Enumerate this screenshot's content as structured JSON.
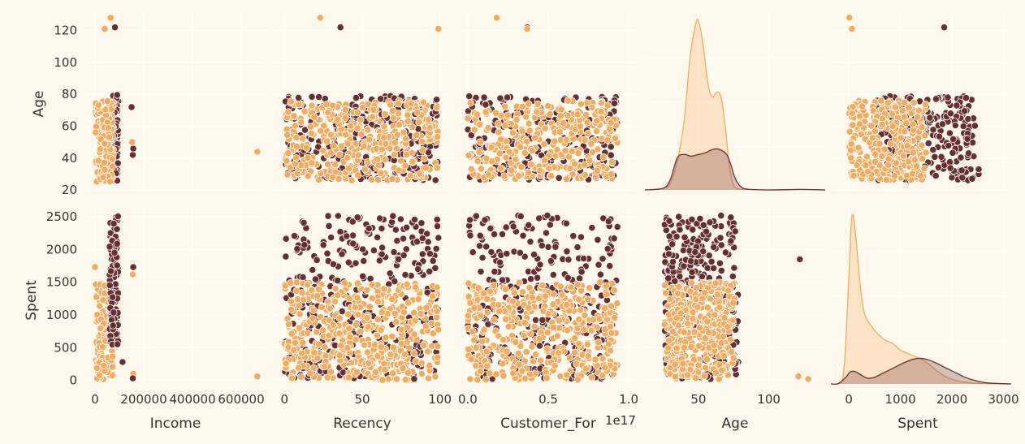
{
  "colors": {
    "background": "#FFF9ED",
    "grid": "#FFFFFF",
    "cluster_dark": "#682F2F",
    "cluster_light": "#F3AB60",
    "text": "#333333"
  },
  "variables": [
    "Age",
    "Spent"
  ],
  "x_variables": [
    "Income",
    "Recency",
    "Customer_For",
    "Age",
    "Spent"
  ],
  "chart_data": [
    {
      "type": "scatter",
      "row": "Age",
      "col": "Income",
      "xlabel": "",
      "ylabel": "Age",
      "xlim": [
        -40000,
        700000
      ],
      "ylim": [
        19,
        131
      ],
      "xticks": [
        0,
        200000,
        400000,
        600000
      ],
      "xtick_labels": [
        "",
        "",
        "",
        ""
      ],
      "yticks": [
        20,
        40,
        60,
        80,
        100,
        120
      ],
      "ytick_labels": [
        "20",
        "40",
        "60",
        "80",
        "100",
        "120"
      ],
      "series": [
        {
          "name": "",
          "color": "#682F2F",
          "x_range": [
            60000,
            95000
          ],
          "y_range": [
            25,
            80
          ],
          "n": 110,
          "outliers": [
            [
              82000,
              122
            ],
            [
              150000,
              72
            ],
            [
              155000,
              42
            ],
            [
              157000,
              46
            ]
          ]
        },
        {
          "name": "",
          "color": "#F3AB60",
          "x_range": [
            2000,
            75000
          ],
          "y_range": [
            25,
            76
          ],
          "n": 130,
          "outliers": [
            [
              64000,
              128
            ],
            [
              40000,
              121
            ],
            [
              152000,
              50
            ],
            [
              666000,
              44
            ]
          ]
        }
      ]
    },
    {
      "type": "scatter",
      "row": "Age",
      "col": "Recency",
      "xlabel": "",
      "ylabel": "",
      "xlim": [
        -8,
        108
      ],
      "ylim": [
        19,
        131
      ],
      "xticks": [
        0,
        50,
        100
      ],
      "xtick_labels": [
        "",
        "",
        ""
      ],
      "yticks": [
        20,
        40,
        60,
        80,
        100,
        120
      ],
      "ytick_labels": [
        "",
        "",
        "",
        "",
        "",
        ""
      ],
      "series": [
        {
          "name": "",
          "color": "#682F2F",
          "x_range": [
            0,
            99
          ],
          "y_range": [
            26,
            79
          ],
          "n": 300,
          "outliers": [
            [
              36,
              122
            ]
          ]
        },
        {
          "name": "",
          "color": "#F3AB60",
          "x_range": [
            0,
            99
          ],
          "y_range": [
            26,
            76
          ],
          "n": 340,
          "outliers": [
            [
              23,
              128
            ],
            [
              99,
              121
            ]
          ]
        }
      ]
    },
    {
      "type": "scatter",
      "row": "Age",
      "col": "Customer_For",
      "xlabel": "",
      "ylabel": "",
      "xlim": [
        -0.06,
        1.06
      ],
      "ylim": [
        19,
        131
      ],
      "xticks": [
        0.0,
        0.5,
        1.0
      ],
      "xtick_labels": [
        "",
        "",
        ""
      ],
      "yticks": [
        20,
        40,
        60,
        80,
        100,
        120
      ],
      "ytick_labels": [
        "",
        "",
        "",
        "",
        "",
        ""
      ],
      "series": [
        {
          "name": "",
          "color": "#682F2F",
          "x_range": [
            0.0,
            0.93
          ],
          "y_range": [
            26,
            79
          ],
          "n": 260,
          "outliers": [
            [
              0.37,
              122
            ]
          ]
        },
        {
          "name": "",
          "color": "#F3AB60",
          "x_range": [
            0.0,
            0.93
          ],
          "y_range": [
            26,
            76
          ],
          "n": 300,
          "outliers": [
            [
              0.18,
              128
            ],
            [
              0.37,
              121
            ]
          ]
        }
      ]
    },
    {
      "type": "kde",
      "row": "Age",
      "col": "Age",
      "xlabel": "",
      "ylabel": "",
      "xlim": [
        12,
        140
      ],
      "xticks": [
        50,
        100
      ],
      "xtick_labels": [
        "",
        ""
      ],
      "series": [
        {
          "name": "",
          "color": "#F3AB60",
          "points": [
            [
              12,
              0
            ],
            [
              25,
              0.01
            ],
            [
              30,
              0.04
            ],
            [
              35,
              0.17
            ],
            [
              40,
              0.42
            ],
            [
              44,
              0.78
            ],
            [
              48,
              0.98
            ],
            [
              50,
              1.0
            ],
            [
              53,
              0.88
            ],
            [
              57,
              0.62
            ],
            [
              60,
              0.55
            ],
            [
              63,
              0.58
            ],
            [
              66,
              0.55
            ],
            [
              69,
              0.38
            ],
            [
              72,
              0.14
            ],
            [
              75,
              0.03
            ],
            [
              80,
              0.005
            ],
            [
              100,
              0.0
            ],
            [
              125,
              0.003
            ],
            [
              130,
              0.002
            ],
            [
              140,
              0
            ]
          ]
        },
        {
          "name": "",
          "color": "#682F2F",
          "points": [
            [
              12,
              0
            ],
            [
              25,
              0.01
            ],
            [
              30,
              0.06
            ],
            [
              35,
              0.19
            ],
            [
              40,
              0.21
            ],
            [
              45,
              0.2
            ],
            [
              50,
              0.21
            ],
            [
              55,
              0.22
            ],
            [
              60,
              0.24
            ],
            [
              65,
              0.24
            ],
            [
              70,
              0.21
            ],
            [
              73,
              0.15
            ],
            [
              76,
              0.07
            ],
            [
              80,
              0.02
            ],
            [
              85,
              0.005
            ],
            [
              100,
              0.0
            ],
            [
              122,
              0.003
            ],
            [
              140,
              0
            ]
          ]
        }
      ]
    },
    {
      "type": "scatter",
      "row": "Age",
      "col": "Spent",
      "xlabel": "",
      "ylabel": "",
      "xlim": [
        -350,
        3150
      ],
      "ylim": [
        19,
        131
      ],
      "xticks": [
        0,
        1000,
        2000,
        3000
      ],
      "xtick_labels": [
        "",
        "",
        "",
        ""
      ],
      "yticks": [
        20,
        40,
        60,
        80,
        100,
        120
      ],
      "ytick_labels": [
        "",
        "",
        "",
        "",
        "",
        ""
      ],
      "series": [
        {
          "name": "",
          "color": "#682F2F",
          "x_range": [
            500,
            2450
          ],
          "y_range": [
            26,
            79
          ],
          "n": 260,
          "outliers": [
            [
              1850,
              122
            ],
            [
              2520,
              30
            ],
            [
              2520,
              33
            ],
            [
              2300,
              52
            ]
          ]
        },
        {
          "name": "",
          "color": "#F3AB60",
          "x_range": [
            5,
            1500
          ],
          "y_range": [
            26,
            76
          ],
          "n": 300,
          "outliers": [
            [
              10,
              128
            ],
            [
              60,
              121
            ]
          ]
        }
      ]
    },
    {
      "type": "scatter",
      "row": "Spent",
      "col": "Income",
      "xlabel": "Income",
      "ylabel": "Spent",
      "xlim": [
        -40000,
        700000
      ],
      "ylim": [
        -80,
        2650
      ],
      "xticks": [
        0,
        200000,
        400000,
        600000
      ],
      "xtick_labels": [
        "0",
        "200000",
        "400000",
        "600000"
      ],
      "yticks": [
        0,
        500,
        1000,
        1500,
        2000,
        2500
      ],
      "ytick_labels": [
        "0",
        "500",
        "1000",
        "1500",
        "2000",
        "2500"
      ],
      "series": [
        {
          "name": "",
          "color": "#F3AB60",
          "x_range": [
            2000,
            75000
          ],
          "y_range": [
            5,
            1500
          ],
          "n": 160,
          "outliers": [
            [
              0,
              1730
            ],
            [
              155000,
              1730
            ],
            [
              155000,
              1620
            ],
            [
              157000,
              100
            ],
            [
              666000,
              60
            ]
          ]
        },
        {
          "name": "",
          "color": "#682F2F",
          "x_range": [
            60000,
            95000
          ],
          "y_range": [
            500,
            2520
          ],
          "n": 130,
          "outliers": [
            [
              157000,
              1730
            ],
            [
              113000,
              280
            ],
            [
              155000,
              30
            ]
          ]
        }
      ]
    },
    {
      "type": "scatter",
      "row": "Spent",
      "col": "Recency",
      "xlabel": "Recency",
      "ylabel": "",
      "xlim": [
        -8,
        108
      ],
      "ylim": [
        -80,
        2650
      ],
      "xticks": [
        0,
        50,
        100
      ],
      "xtick_labels": [
        "0",
        "50",
        "100"
      ],
      "yticks": [
        0,
        500,
        1000,
        1500,
        2000,
        2500
      ],
      "ytick_labels": [
        "",
        "",
        "",
        "",
        "",
        ""
      ],
      "series": [
        {
          "name": "",
          "color": "#682F2F",
          "x_range": [
            0,
            99
          ],
          "y_range": [
            20,
            2520
          ],
          "n": 360
        },
        {
          "name": "",
          "color": "#F3AB60",
          "x_range": [
            0,
            99
          ],
          "y_range": [
            5,
            1500
          ],
          "n": 440
        }
      ]
    },
    {
      "type": "scatter",
      "row": "Spent",
      "col": "Customer_For",
      "xlabel": "Customer_For",
      "ylabel": "",
      "xlim": [
        -0.06,
        1.06
      ],
      "ylim": [
        -80,
        2650
      ],
      "xticks": [
        0.0,
        0.5,
        1.0
      ],
      "xtick_labels": [
        "0.0",
        "0.5",
        "1.0"
      ],
      "offset_text": "1e17",
      "yticks": [
        0,
        500,
        1000,
        1500,
        2000,
        2500
      ],
      "ytick_labels": [
        "",
        "",
        "",
        "",
        "",
        ""
      ],
      "series": [
        {
          "name": "",
          "color": "#682F2F",
          "x_range": [
            0.0,
            0.93
          ],
          "y_range": [
            20,
            2520
          ],
          "n": 320
        },
        {
          "name": "",
          "color": "#F3AB60",
          "x_range": [
            0.0,
            0.93
          ],
          "y_range": [
            5,
            1500
          ],
          "n": 400
        }
      ]
    },
    {
      "type": "scatter",
      "row": "Spent",
      "col": "Age",
      "xlabel": "Age",
      "ylabel": "",
      "xlim": [
        12,
        140
      ],
      "ylim": [
        -80,
        2650
      ],
      "xticks": [
        50,
        100
      ],
      "xtick_labels": [
        "50",
        "100"
      ],
      "yticks": [
        0,
        500,
        1000,
        1500,
        2000,
        2500
      ],
      "ytick_labels": [
        "",
        "",
        "",
        "",
        "",
        ""
      ],
      "series": [
        {
          "name": "",
          "color": "#682F2F",
          "x_range": [
            26,
            79
          ],
          "y_range": [
            20,
            2520
          ],
          "n": 320,
          "outliers": [
            [
              122,
              1850
            ]
          ]
        },
        {
          "name": "",
          "color": "#F3AB60",
          "x_range": [
            26,
            76
          ],
          "y_range": [
            5,
            1500
          ],
          "n": 380,
          "outliers": [
            [
              121,
              60
            ],
            [
              128,
              20
            ]
          ]
        }
      ]
    },
    {
      "type": "kde",
      "row": "Spent",
      "col": "Spent",
      "xlabel": "Spent",
      "ylabel": "",
      "xlim": [
        -350,
        3150
      ],
      "xticks": [
        0,
        1000,
        2000,
        3000
      ],
      "xtick_labels": [
        "0",
        "1000",
        "2000",
        "3000"
      ],
      "series": [
        {
          "name": "",
          "color": "#F3AB60",
          "points": [
            [
              -350,
              0
            ],
            [
              -200,
              0.005
            ],
            [
              -100,
              0.08
            ],
            [
              -20,
              0.5
            ],
            [
              40,
              0.92
            ],
            [
              80,
              1.0
            ],
            [
              140,
              0.85
            ],
            [
              220,
              0.58
            ],
            [
              300,
              0.42
            ],
            [
              420,
              0.35
            ],
            [
              550,
              0.3
            ],
            [
              700,
              0.26
            ],
            [
              850,
              0.24
            ],
            [
              1000,
              0.2
            ],
            [
              1150,
              0.18
            ],
            [
              1300,
              0.16
            ],
            [
              1500,
              0.13
            ],
            [
              1700,
              0.08
            ],
            [
              1900,
              0.04
            ],
            [
              2150,
              0.015
            ],
            [
              2500,
              0.003
            ],
            [
              3150,
              0
            ]
          ]
        },
        {
          "name": "",
          "color": "#682F2F",
          "points": [
            [
              -350,
              0
            ],
            [
              -200,
              0.002
            ],
            [
              -60,
              0.04
            ],
            [
              20,
              0.07
            ],
            [
              100,
              0.075
            ],
            [
              200,
              0.06
            ],
            [
              350,
              0.035
            ],
            [
              500,
              0.04
            ],
            [
              700,
              0.07
            ],
            [
              900,
              0.1
            ],
            [
              1100,
              0.13
            ],
            [
              1300,
              0.15
            ],
            [
              1450,
              0.15
            ],
            [
              1650,
              0.13
            ],
            [
              1850,
              0.1
            ],
            [
              2050,
              0.07
            ],
            [
              2250,
              0.04
            ],
            [
              2450,
              0.02
            ],
            [
              2700,
              0.006
            ],
            [
              3150,
              0
            ]
          ]
        }
      ]
    }
  ]
}
